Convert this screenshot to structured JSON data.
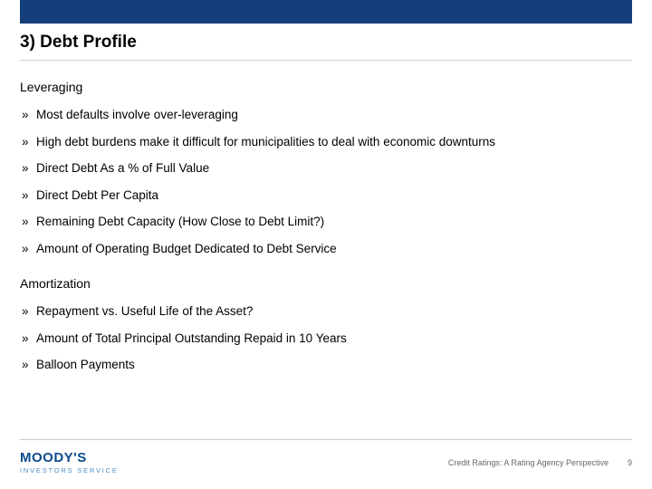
{
  "colors": {
    "brand_blue": "#153f7a",
    "logo_brand": "#0b4a8a",
    "logo_sub": "#4a8dc6",
    "divider": "#d0d0d0",
    "footer_text": "#666666",
    "text": "#000000",
    "bg": "#ffffff"
  },
  "title": "3) Debt Profile",
  "sections": [
    {
      "heading": "Leveraging",
      "items": [
        "Most defaults involve over-leveraging",
        "High debt burdens make it difficult for municipalities to deal with economic downturns",
        "Direct Debt As a % of Full Value",
        "Direct Debt Per Capita",
        "Remaining Debt Capacity (How Close to Debt Limit?)",
        "Amount of Operating Budget Dedicated to Debt Service"
      ]
    },
    {
      "heading": "Amortization",
      "items": [
        "Repayment vs. Useful Life of the Asset?",
        "Amount of Total Principal Outstanding Repaid in 10 Years",
        "Balloon Payments"
      ]
    }
  ],
  "logo": {
    "main": "MOODY'S",
    "sub": "INVESTORS SERVICE"
  },
  "footer": {
    "text": "Credit Ratings: A Rating Agency Perspective",
    "page": "9"
  }
}
